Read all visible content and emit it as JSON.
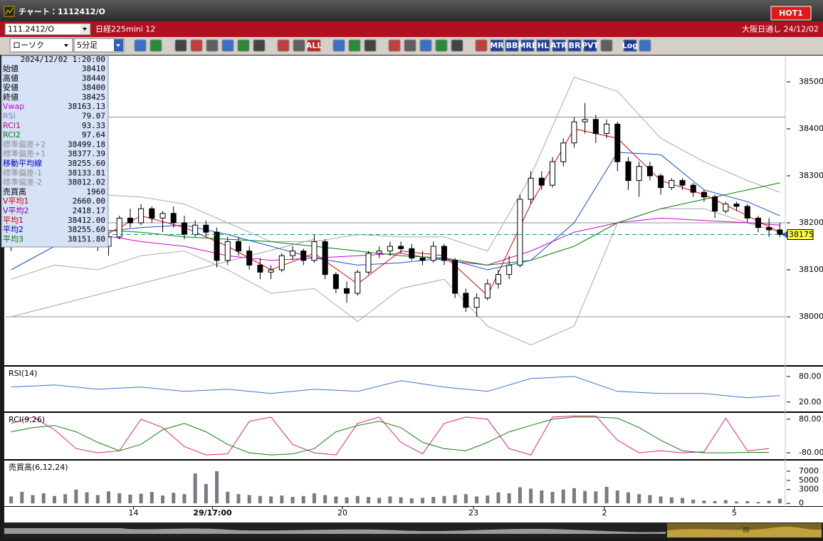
{
  "window": {
    "title": "チャート：1112412/O",
    "hot": "HOT1"
  },
  "symbol_bar": {
    "code": "111.2412/O",
    "name": "日経225mini 12",
    "session": "大阪日通し 24/12/02"
  },
  "toolbar": {
    "chart_type": "ローソク",
    "interval": "5分足",
    "buttons": [
      "ALL",
      "MR",
      "BB",
      "MRE",
      "HL",
      "ATR",
      "BR",
      "PVT",
      "Log"
    ]
  },
  "info_panel": {
    "datetime": "2024/12/02 1:20:00",
    "rows": [
      {
        "label": "始値",
        "value": "38410",
        "color": "#000000"
      },
      {
        "label": "高値",
        "value": "38440",
        "color": "#000000"
      },
      {
        "label": "安値",
        "value": "38400",
        "color": "#000000"
      },
      {
        "label": "終値",
        "value": "38425",
        "color": "#000000"
      },
      {
        "label": "Vwap",
        "value": "38163.13",
        "color": "#d000d0"
      },
      {
        "label": "RSI",
        "value": "79.07",
        "color": "#7080c0"
      },
      {
        "label": "RCI1",
        "value": "93.33",
        "color": "#d0007a"
      },
      {
        "label": "RCI2",
        "value": "97.64",
        "color": "#008000"
      },
      {
        "label": "標準偏差+2",
        "value": "38499.18",
        "color": "#909090"
      },
      {
        "label": "標準偏差+1",
        "value": "38377.39",
        "color": "#909090"
      },
      {
        "label": "移動平均線",
        "value": "38255.60",
        "color": "#0000c0"
      },
      {
        "label": "標準偏差-1",
        "value": "38133.81",
        "color": "#909090"
      },
      {
        "label": "標準偏差-2",
        "value": "38012.02",
        "color": "#909090"
      },
      {
        "label": "売買高",
        "value": "1960",
        "color": "#000000"
      },
      {
        "label": "V平均1",
        "value": "2660.00",
        "color": "#d00000"
      },
      {
        "label": "V平均2",
        "value": "2418.17",
        "color": "#8000a0"
      },
      {
        "label": "平均1",
        "value": "38412.00",
        "color": "#d00000"
      },
      {
        "label": "平均2",
        "value": "38255.60",
        "color": "#0000c0"
      },
      {
        "label": "平均3",
        "value": "38151.80",
        "color": "#008000"
      }
    ]
  },
  "chart_data": [
    {
      "type": "candlestick",
      "ylim": [
        37897,
        38553
      ],
      "yticks": [
        38000,
        38100,
        38200,
        38300,
        38400,
        38500
      ],
      "xticks": [
        {
          "value": 11.3,
          "label": "14"
        },
        {
          "value": 18.6,
          "label": "29/17:00"
        },
        {
          "value": 30.6,
          "label": "20"
        },
        {
          "value": 42.7,
          "label": "23"
        },
        {
          "value": 54.8,
          "label": "2"
        },
        {
          "value": 66.8,
          "label": "5"
        }
      ],
      "candles": [
        [
          38150,
          38165,
          38140,
          38160
        ],
        [
          38160,
          38175,
          38150,
          38170
        ],
        [
          38170,
          38185,
          38160,
          38175
        ],
        [
          38175,
          38190,
          38165,
          38180
        ],
        [
          38180,
          38195,
          38170,
          38185
        ],
        [
          38185,
          38200,
          38175,
          38190
        ],
        [
          38190,
          38200,
          38170,
          38175
        ],
        [
          38175,
          38190,
          38165,
          38185
        ],
        [
          38185,
          38195,
          38140,
          38150
        ],
        [
          38150,
          38180,
          38130,
          38170
        ],
        [
          38170,
          38215,
          38165,
          38210
        ],
        [
          38210,
          38230,
          38190,
          38200
        ],
        [
          38200,
          38240,
          38195,
          38230
        ],
        [
          38230,
          38235,
          38200,
          38210
        ],
        [
          38210,
          38225,
          38180,
          38220
        ],
        [
          38220,
          38235,
          38190,
          38200
        ],
        [
          38200,
          38215,
          38165,
          38175
        ],
        [
          38175,
          38205,
          38170,
          38195
        ],
        [
          38195,
          38205,
          38170,
          38180
        ],
        [
          38180,
          38190,
          38105,
          38120
        ],
        [
          38120,
          38170,
          38110,
          38160
        ],
        [
          38160,
          38170,
          38130,
          38140
        ],
        [
          38140,
          38150,
          38100,
          38110
        ],
        [
          38110,
          38125,
          38080,
          38095
        ],
        [
          38095,
          38110,
          38080,
          38100
        ],
        [
          38100,
          38135,
          38095,
          38130
        ],
        [
          38130,
          38150,
          38120,
          38140
        ],
        [
          38140,
          38145,
          38110,
          38120
        ],
        [
          38120,
          38175,
          38115,
          38160
        ],
        [
          38160,
          38165,
          38080,
          38090
        ],
        [
          38090,
          38095,
          38050,
          38060
        ],
        [
          38060,
          38075,
          38030,
          38050
        ],
        [
          38050,
          38100,
          38045,
          38095
        ],
        [
          38095,
          38140,
          38090,
          38135
        ],
        [
          38135,
          38150,
          38125,
          38140
        ],
        [
          38140,
          38160,
          38130,
          38150
        ],
        [
          38150,
          38160,
          38135,
          38145
        ],
        [
          38145,
          38155,
          38120,
          38125
        ],
        [
          38125,
          38140,
          38110,
          38120
        ],
        [
          38120,
          38160,
          38115,
          38150
        ],
        [
          38150,
          38155,
          38110,
          38120
        ],
        [
          38120,
          38125,
          38040,
          38050
        ],
        [
          38050,
          38060,
          38010,
          38020
        ],
        [
          38020,
          38050,
          38000,
          38040
        ],
        [
          38040,
          38080,
          38035,
          38070
        ],
        [
          38070,
          38100,
          38060,
          38090
        ],
        [
          38090,
          38130,
          38080,
          38110
        ],
        [
          38110,
          38260,
          38105,
          38250
        ],
        [
          38250,
          38310,
          38240,
          38295
        ],
        [
          38295,
          38310,
          38270,
          38280
        ],
        [
          38280,
          38340,
          38275,
          38330
        ],
        [
          38330,
          38380,
          38320,
          38370
        ],
        [
          38370,
          38425,
          38360,
          38415
        ],
        [
          38415,
          38455,
          38390,
          38420
        ],
        [
          38420,
          38430,
          38370,
          38390
        ],
        [
          38390,
          38420,
          38380,
          38410
        ],
        [
          38410,
          38415,
          38310,
          38330
        ],
        [
          38330,
          38340,
          38270,
          38290
        ],
        [
          38290,
          38330,
          38255,
          38320
        ],
        [
          38320,
          38330,
          38290,
          38300
        ],
        [
          38300,
          38305,
          38260,
          38275
        ],
        [
          38275,
          38295,
          38270,
          38290
        ],
        [
          38290,
          38295,
          38270,
          38280
        ],
        [
          38280,
          38285,
          38255,
          38265
        ],
        [
          38265,
          38270,
          38245,
          38255
        ],
        [
          38255,
          38260,
          38210,
          38225
        ],
        [
          38225,
          38245,
          38220,
          38240
        ],
        [
          38240,
          38245,
          38225,
          38235
        ],
        [
          38235,
          38240,
          38200,
          38210
        ],
        [
          38210,
          38215,
          38180,
          38190
        ],
        [
          38190,
          38210,
          38170,
          38185
        ],
        [
          38185,
          38200,
          38170,
          38175
        ]
      ],
      "overlays": {
        "x": [
          0,
          4,
          8,
          12,
          16,
          20,
          24,
          28,
          32,
          36,
          40,
          44,
          48,
          52,
          56,
          60,
          64,
          68,
          71
        ],
        "series": [
          {
            "color": "#a8a8a8",
            "values": [
              38230,
              38245,
              38260,
              38255,
              38240,
              38200,
              38160,
              38160,
              38175,
              38170,
              38170,
              38140,
              38300,
              38510,
              38480,
              38380,
              38330,
              38290,
              38265
            ]
          },
          {
            "color": "#a8a8a8",
            "values": [
              38080,
              38110,
              38100,
              38130,
              38140,
              38100,
              38050,
              38060,
              37990,
              38060,
              38080,
              37980,
              37940,
              37980,
              38200,
              38230,
              38230,
              38200,
              38180
            ]
          },
          {
            "color": "#d000d0",
            "values": [
              38180,
              38185,
              38175,
              38160,
              38150,
              38130,
              38120,
              38125,
              38130,
              38135,
              38120,
              38110,
              38140,
              38180,
              38200,
              38210,
              38205,
              38200,
              38195
            ]
          },
          {
            "color": "#008000",
            "values": [
              38175,
              38180,
              38185,
              38180,
              38170,
              38165,
              38160,
              38150,
              38140,
              38130,
              38125,
              38110,
              38120,
              38150,
              38200,
              38230,
              38250,
              38270,
              38285
            ]
          },
          {
            "color": "#1050d0",
            "values": [
              38100,
              38150,
              38180,
              38190,
              38195,
              38175,
              38150,
              38125,
              38110,
              38115,
              38125,
              38100,
              38120,
              38200,
              38350,
              38345,
              38270,
              38245,
              38215
            ]
          },
          {
            "color": "#e00000",
            "values": [
              38150,
              38182,
              38165,
              38215,
              38190,
              38150,
              38100,
              38135,
              38070,
              38140,
              38130,
              38045,
              38240,
              38400,
              38380,
              38290,
              38260,
              38215,
              38180
            ]
          }
        ]
      },
      "hlines": [
        38425,
        38200,
        38000
      ],
      "trendline": {
        "x": [
          0,
          28
        ],
        "y": [
          38000,
          38165
        ]
      },
      "last_price": 38175
    },
    {
      "type": "line",
      "title": "RSI(14)",
      "ylim": [
        -2,
        103
      ],
      "yticks": [
        {
          "value": 80,
          "label": "80.00"
        },
        {
          "value": 20,
          "label": "20.00"
        }
      ],
      "x": [
        0,
        4,
        8,
        12,
        16,
        20,
        24,
        28,
        32,
        36,
        40,
        44,
        48,
        52,
        56,
        60,
        64,
        68,
        71
      ],
      "series": [
        {
          "color": "#4070d0",
          "values": [
            55,
            60,
            50,
            55,
            45,
            50,
            40,
            50,
            45,
            70,
            55,
            45,
            75,
            80,
            45,
            40,
            40,
            30,
            35
          ]
        }
      ]
    },
    {
      "type": "line",
      "title": "RCI(9,26)",
      "ylim": [
        -110,
        110
      ],
      "yticks": [
        {
          "value": 80,
          "label": "80.00"
        },
        {
          "value": -80,
          "label": "-80.00"
        }
      ],
      "x": [
        0,
        2,
        4,
        6,
        8,
        10,
        12,
        14,
        16,
        18,
        20,
        22,
        24,
        26,
        28,
        30,
        32,
        34,
        36,
        38,
        40,
        42,
        44,
        46,
        48,
        50,
        52,
        54,
        56,
        58,
        60,
        62,
        64,
        66,
        68,
        70
      ],
      "series": [
        {
          "color": "#e0207a",
          "values": [
            60,
            90,
            30,
            -60,
            -80,
            -70,
            80,
            40,
            -50,
            -90,
            -85,
            70,
            90,
            -40,
            -80,
            -90,
            60,
            90,
            -30,
            -85,
            60,
            90,
            80,
            -60,
            -90,
            90,
            95,
            95,
            -20,
            -80,
            -70,
            -80,
            -75,
            85,
            -70,
            -60
          ]
        },
        {
          "color": "#108010",
          "values": [
            20,
            40,
            50,
            20,
            -30,
            -70,
            -40,
            30,
            60,
            20,
            -40,
            -80,
            -90,
            -85,
            -60,
            20,
            50,
            70,
            40,
            -30,
            -60,
            -70,
            -30,
            20,
            50,
            80,
            90,
            90,
            85,
            40,
            -20,
            -70,
            -80,
            -80,
            -78,
            -78
          ]
        }
      ]
    },
    {
      "type": "bar",
      "title": "売買高(6,12,24)",
      "ylim": [
        -600,
        9300
      ],
      "yticks": [
        7000,
        5000,
        3000,
        0
      ],
      "color": "#7a7a86",
      "values": [
        1500,
        2500,
        1800,
        2200,
        1600,
        2000,
        3000,
        2400,
        1800,
        2600,
        2200,
        1900,
        2100,
        2500,
        1700,
        2300,
        2000,
        6500,
        4200,
        7000,
        2500,
        2000,
        1800,
        1600,
        1500,
        1700,
        1400,
        1600,
        2200,
        1800,
        1500,
        1300,
        1600,
        1400,
        1200,
        1500,
        1300,
        1100,
        1200,
        1400,
        1600,
        1800,
        2000,
        1500,
        1700,
        2400,
        2200,
        3500,
        3200,
        2800,
        2500,
        3000,
        3300,
        2700,
        2600,
        3600,
        2800,
        2400,
        2000,
        1800,
        1500,
        1300,
        1200,
        800,
        600,
        500,
        700,
        400,
        500,
        300,
        600,
        1000
      ]
    }
  ]
}
